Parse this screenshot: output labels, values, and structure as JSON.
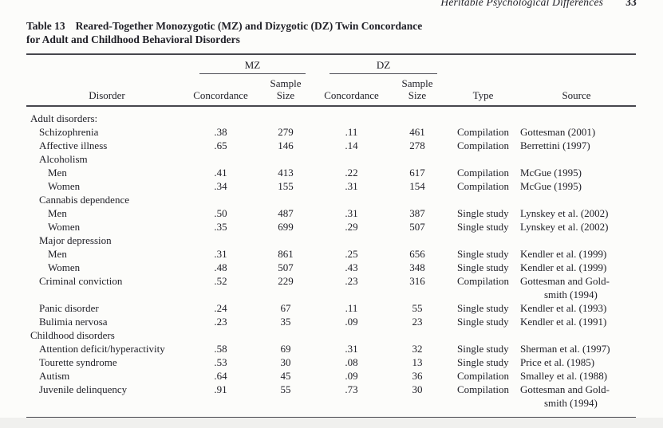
{
  "page": {
    "running_head": "Heritable Psychological Differences",
    "page_number": "33"
  },
  "colors": {
    "ink": "#212128",
    "rule": "#46464c",
    "background": "#fcfcfa"
  },
  "table": {
    "caption_label": "Table 13",
    "caption_line1": "Reared-Together Monozygotic (MZ) and Dizygotic (DZ) Twin Concordance",
    "caption_line2": "for Adult and Childhood Behavioral Disorders",
    "col_groups": {
      "mz": "MZ",
      "dz": "DZ"
    },
    "headers": {
      "disorder": "Disorder",
      "concordance": "Concordance",
      "sample_size_line1": "Sample",
      "sample_size_line2": "Size",
      "type": "Type",
      "source": "Source"
    },
    "rows": [
      {
        "label": "Adult disorders:",
        "indent": 0,
        "section": true
      },
      {
        "label": "Schizophrenia",
        "indent": 1,
        "mz_c": ".38",
        "mz_n": "279",
        "dz_c": ".11",
        "dz_n": "461",
        "type": "Compilation",
        "source": [
          "Gottesman (2001)"
        ]
      },
      {
        "label": "Affective illness",
        "indent": 1,
        "mz_c": ".65",
        "mz_n": "146",
        "dz_c": ".14",
        "dz_n": "278",
        "type": "Compilation",
        "source": [
          "Berrettini (1997)"
        ]
      },
      {
        "label": "Alcoholism",
        "indent": 1,
        "section": true
      },
      {
        "label": "Men",
        "indent": 2,
        "mz_c": ".41",
        "mz_n": "413",
        "dz_c": ".22",
        "dz_n": "617",
        "type": "Compilation",
        "source": [
          "McGue (1995)"
        ]
      },
      {
        "label": "Women",
        "indent": 2,
        "mz_c": ".34",
        "mz_n": "155",
        "dz_c": ".31",
        "dz_n": "154",
        "type": "Compilation",
        "source": [
          "McGue (1995)"
        ]
      },
      {
        "label": "Cannabis dependence",
        "indent": 1,
        "section": true
      },
      {
        "label": "Men",
        "indent": 2,
        "mz_c": ".50",
        "mz_n": "487",
        "dz_c": ".31",
        "dz_n": "387",
        "type": "Single study",
        "source": [
          "Lynskey et al. (2002)"
        ]
      },
      {
        "label": "Women",
        "indent": 2,
        "mz_c": ".35",
        "mz_n": "699",
        "dz_c": ".29",
        "dz_n": "507",
        "type": "Single study",
        "source": [
          "Lynskey et al. (2002)"
        ]
      },
      {
        "label": "Major depression",
        "indent": 1,
        "section": true
      },
      {
        "label": "Men",
        "indent": 2,
        "mz_c": ".31",
        "mz_n": "861",
        "dz_c": ".25",
        "dz_n": "656",
        "type": "Single study",
        "source": [
          "Kendler et al. (1999)"
        ]
      },
      {
        "label": "Women",
        "indent": 2,
        "mz_c": ".48",
        "mz_n": "507",
        "dz_c": ".43",
        "dz_n": "348",
        "type": "Single study",
        "source": [
          "Kendler et al. (1999)"
        ]
      },
      {
        "label": "Criminal conviction",
        "indent": 1,
        "mz_c": ".52",
        "mz_n": "229",
        "dz_c": ".23",
        "dz_n": "316",
        "type": "Compilation",
        "source": [
          "Gottesman and Gold-",
          "smith (1994)"
        ]
      },
      {
        "label": "Panic disorder",
        "indent": 1,
        "mz_c": ".24",
        "mz_n": "67",
        "dz_c": ".11",
        "dz_n": "55",
        "type": "Single study",
        "source": [
          "Kendler et al. (1993)"
        ]
      },
      {
        "label": "Bulimia nervosa",
        "indent": 1,
        "mz_c": ".23",
        "mz_n": "35",
        "dz_c": ".09",
        "dz_n": "23",
        "type": "Single study",
        "source": [
          "Kendler et al. (1991)"
        ]
      },
      {
        "label": "Childhood disorders",
        "indent": 0,
        "section": true
      },
      {
        "label": "Attention deficit/hyperactivity",
        "indent": 1,
        "mz_c": ".58",
        "mz_n": "69",
        "dz_c": ".31",
        "dz_n": "32",
        "type": "Single study",
        "source": [
          "Sherman et al. (1997)"
        ]
      },
      {
        "label": "Tourette syndrome",
        "indent": 1,
        "mz_c": ".53",
        "mz_n": "30",
        "dz_c": ".08",
        "dz_n": "13",
        "type": "Single study",
        "source": [
          "Price et al. (1985)"
        ]
      },
      {
        "label": "Autism",
        "indent": 1,
        "mz_c": ".64",
        "mz_n": "45",
        "dz_c": ".09",
        "dz_n": "36",
        "type": "Compilation",
        "source": [
          "Smalley et al. (1988)"
        ]
      },
      {
        "label": "Juvenile delinquency",
        "indent": 1,
        "mz_c": ".91",
        "mz_n": "55",
        "dz_c": ".73",
        "dz_n": "30",
        "type": "Compilation",
        "source": [
          "Gottesman and Gold-",
          "smith (1994)"
        ]
      }
    ]
  }
}
